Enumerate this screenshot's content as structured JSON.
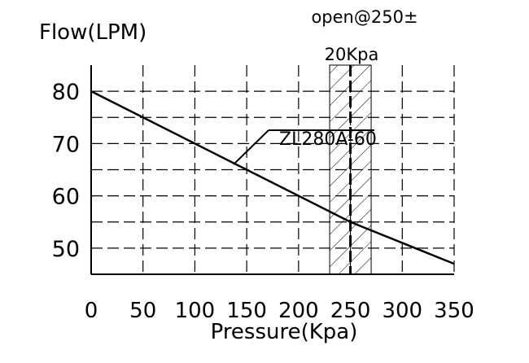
{
  "chart_data": {
    "type": "line",
    "xlabel": "Pressure(Kpa)",
    "ylabel": "Flow(LPM)",
    "xlim": [
      0,
      350
    ],
    "ylim": [
      45,
      85
    ],
    "x_ticks": [
      "0",
      "50",
      "100",
      "150",
      "200",
      "250",
      "300",
      "350"
    ],
    "y_ticks": [
      "80",
      "70",
      "60",
      "50"
    ],
    "grid": true,
    "series": [
      {
        "name": "ZL280A-60",
        "x": [
          0,
          250,
          350
        ],
        "y": [
          80,
          55,
          47
        ]
      }
    ],
    "open_band": {
      "center": 250,
      "range": [
        230,
        270
      ],
      "label_line1": "open@250±",
      "label_line2": "20Kpa"
    }
  }
}
